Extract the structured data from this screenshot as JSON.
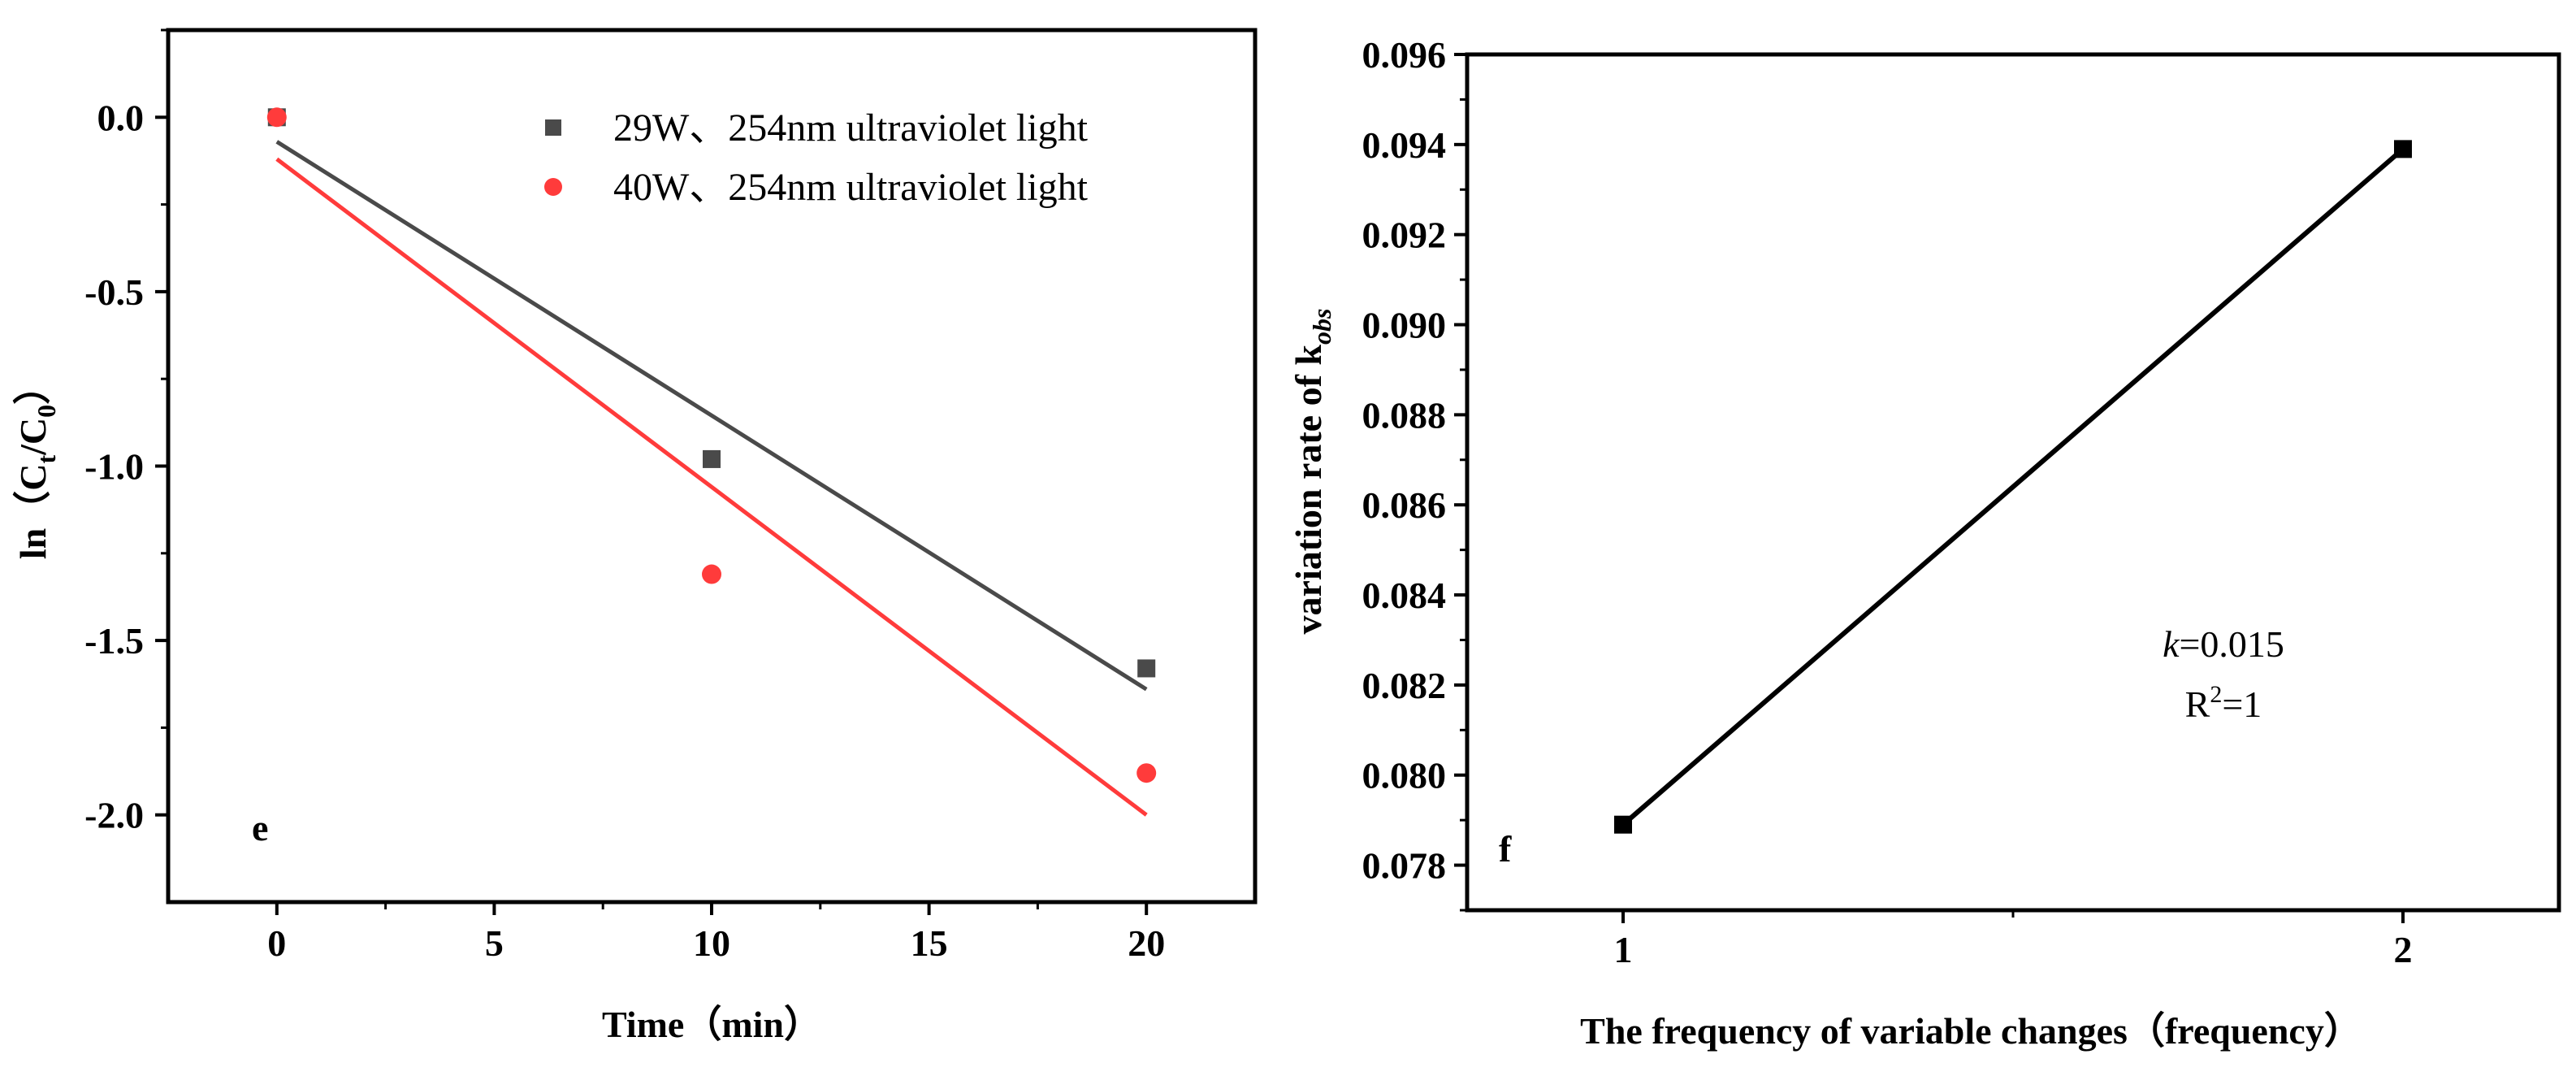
{
  "chart_data": [
    {
      "type": "scatter",
      "panel_label": "e",
      "title": "",
      "xlabel": "Time（min）",
      "ylabel": {
        "main": "ln（C",
        "sub1": "t",
        "mid": "/C",
        "sub2": "0",
        "end": "）"
      },
      "xlim": [
        -2.5,
        22.5
      ],
      "ylim": [
        -2.25,
        0.25
      ],
      "x_ticks": [
        0,
        5,
        10,
        15,
        20
      ],
      "x_tick_labels": [
        "0",
        "5",
        "10",
        "15",
        "20"
      ],
      "y_ticks": [
        0.0,
        -0.5,
        -1.0,
        -1.5,
        -2.0
      ],
      "y_tick_labels": [
        "0.0",
        "-0.5",
        "-1.0",
        "-1.5",
        "-2.0"
      ],
      "legend_position": "top-right",
      "series": [
        {
          "name": "29W、254nm ultraviolet light",
          "marker": "square",
          "color": "#4a4a4a",
          "x": [
            0,
            10,
            20
          ],
          "y": [
            0.0,
            -0.98,
            -1.58
          ],
          "fit": {
            "x": [
              0,
              20
            ],
            "y": [
              -0.07,
              -1.64
            ]
          }
        },
        {
          "name": "40W、254nm ultraviolet light",
          "marker": "circle",
          "color": "#ff3b3b",
          "x": [
            0,
            10,
            20
          ],
          "y": [
            0.0,
            -1.31,
            -1.88
          ],
          "fit": {
            "x": [
              0,
              20
            ],
            "y": [
              -0.12,
              -2.0
            ]
          }
        }
      ]
    },
    {
      "type": "line",
      "panel_label": "f",
      "title": "",
      "xlabel": "The frequency of variable changes（frequency）",
      "ylabel": {
        "main": "variation rate of k",
        "sub": "obs"
      },
      "xlim": [
        0.8,
        2.2
      ],
      "ylim": [
        0.077,
        0.096
      ],
      "x_ticks": [
        1,
        2
      ],
      "x_tick_labels": [
        "1",
        "2"
      ],
      "y_ticks": [
        0.078,
        0.08,
        0.082,
        0.084,
        0.086,
        0.088,
        0.09,
        0.092,
        0.094,
        0.096
      ],
      "y_tick_labels": [
        "0.078",
        "0.080",
        "0.082",
        "0.084",
        "0.086",
        "0.088",
        "0.090",
        "0.092",
        "0.094",
        "0.096"
      ],
      "series": [
        {
          "name": "variation rate",
          "marker": "square",
          "color": "#000000",
          "x": [
            1,
            2
          ],
          "y": [
            0.0789,
            0.0939
          ]
        }
      ],
      "annotation": {
        "k_symbol": "k",
        "k_value": "=0.015",
        "r_symbol": "R",
        "r_exp": "2",
        "r_value": "=1"
      }
    }
  ]
}
